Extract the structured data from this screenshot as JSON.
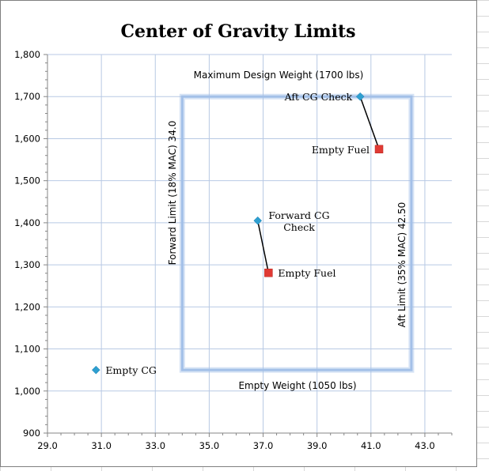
{
  "chart_data": {
    "type": "scatter",
    "title": "Center of Gravity Limits",
    "xlabel": "",
    "ylabel": "",
    "xlim": [
      29.0,
      44.0
    ],
    "ylim": [
      900,
      1800
    ],
    "x_ticks": [
      29.0,
      31.0,
      33.0,
      35.0,
      37.0,
      39.0,
      41.0,
      43.0
    ],
    "x_tick_labels": [
      "29.0",
      "31.0",
      "33.0",
      "35.0",
      "37.0",
      "39.0",
      "41.0",
      "43.0"
    ],
    "y_ticks": [
      900,
      1000,
      1100,
      1200,
      1300,
      1400,
      1500,
      1600,
      1700,
      1800
    ],
    "y_tick_labels": [
      "900",
      "1,000",
      "1,100",
      "1,200",
      "1,300",
      "1,400",
      "1,500",
      "1,600",
      "1,700",
      "1,800"
    ],
    "grid": true,
    "envelope": {
      "x_min": 34.0,
      "x_max": 42.5,
      "y_min": 1050,
      "y_max": 1700,
      "labels": {
        "top": "Maximum Design Weight (1700 lbs)",
        "bottom": "Empty Weight (1050 lbs)",
        "left": "Forward Limit (18% MAC) 34.0",
        "right": "Aft Limit (35% MAC) 42.50"
      }
    },
    "points": [
      {
        "name": "Empty CG",
        "label": "Empty CG",
        "x": 30.8,
        "y": 1050,
        "marker": "diamond",
        "color": "#2e9fd0"
      },
      {
        "name": "Forward CG Check",
        "label_lines": [
          "Forward CG",
          "Check"
        ],
        "x": 36.8,
        "y": 1405,
        "marker": "diamond",
        "color": "#2e9fd0"
      },
      {
        "name": "Forward Empty Fuel",
        "label": "Empty Fuel",
        "x": 37.2,
        "y": 1281,
        "marker": "square",
        "color": "#e03a34"
      },
      {
        "name": "Aft CG Check",
        "label": "Aft CG Check",
        "x": 40.6,
        "y": 1700,
        "marker": "diamond",
        "color": "#2e9fd0"
      },
      {
        "name": "Aft Empty Fuel",
        "label": "Empty Fuel",
        "x": 41.3,
        "y": 1575,
        "marker": "square",
        "color": "#e03a34"
      }
    ],
    "segments": [
      {
        "from": "Forward CG Check",
        "to": "Forward Empty Fuel"
      },
      {
        "from": "Aft CG Check",
        "to": "Aft Empty Fuel"
      }
    ]
  },
  "colors": {
    "grid": "#b8c9e4",
    "envelope": "#a3c0e8",
    "diamond": "#2e9fd0",
    "square": "#e03a34",
    "sheet_grid": "#d8d8d8"
  }
}
